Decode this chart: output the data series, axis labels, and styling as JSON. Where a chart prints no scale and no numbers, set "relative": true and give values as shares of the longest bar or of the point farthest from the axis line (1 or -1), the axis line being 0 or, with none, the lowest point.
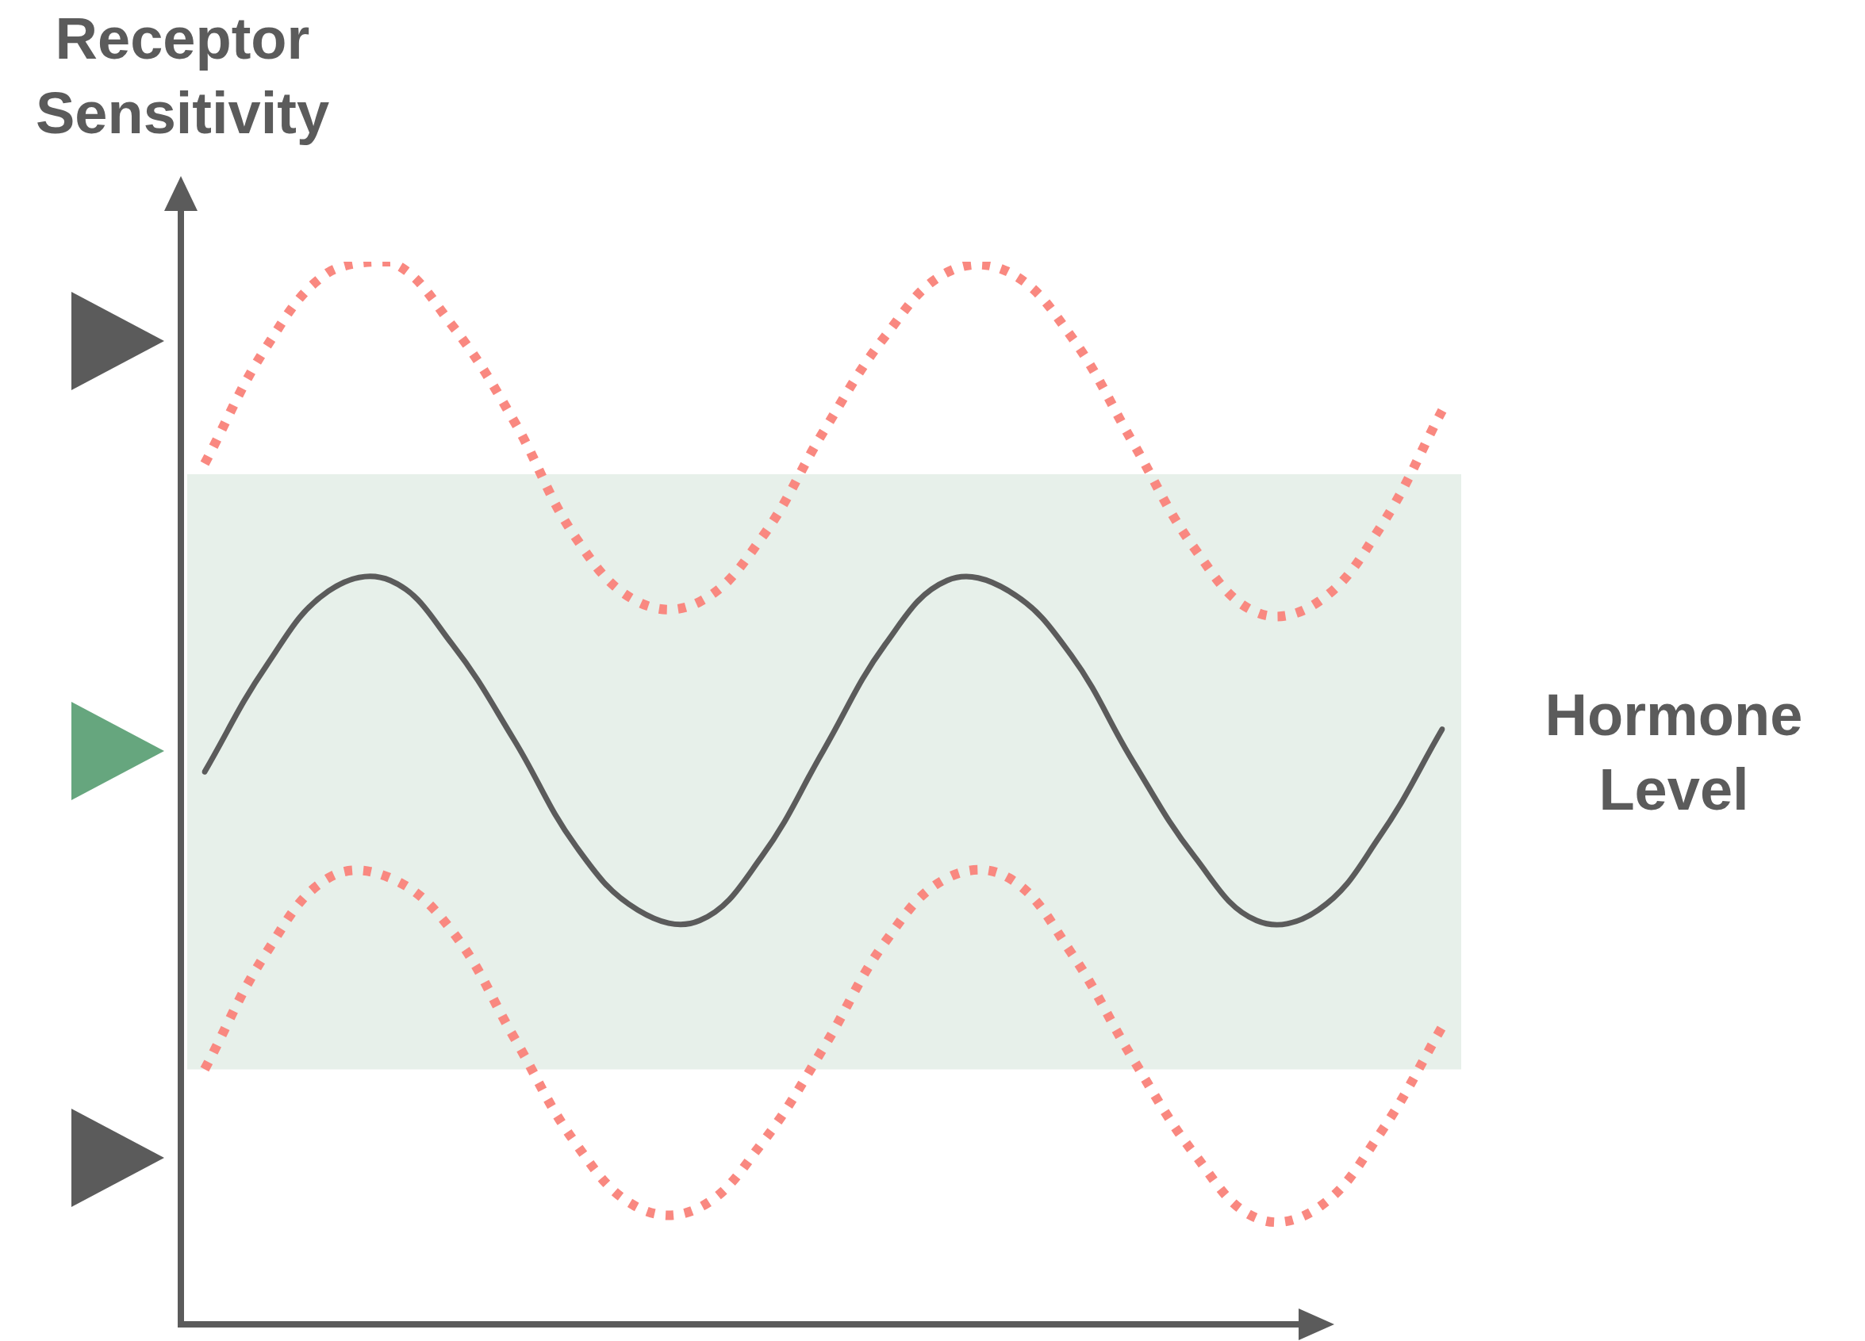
{
  "chart_data": {
    "type": "line",
    "relative": true,
    "ylabel": "Receptor Sensitivity",
    "legend": false,
    "marker": "none",
    "categories": [
      null,
      null,
      null,
      null,
      null,
      null,
      null,
      null,
      null,
      null,
      null,
      null,
      null,
      null,
      null,
      null,
      null,
      null,
      null,
      null,
      null
    ],
    "bands": [
      {
        "axis": "y",
        "from": 0.24,
        "to": 0.8,
        "color": "#e7f0ea"
      }
    ],
    "series": [
      {
        "name": "Hormone Level",
        "color": "#5b5b5b",
        "line_style": "solid",
        "values": [
          0.52,
          0.62,
          0.69,
          0.7,
          0.64,
          0.55,
          0.45,
          0.39,
          0.38,
          0.44,
          0.54,
          0.64,
          0.7,
          0.69,
          0.63,
          0.53,
          0.44,
          0.38,
          0.39,
          0.46,
          0.56
        ]
      },
      {
        "color": "#f98880",
        "line_style": "dotted",
        "values": [
          0.81,
          0.92,
          0.99,
          1.0,
          0.94,
          0.85,
          0.74,
          0.68,
          0.68,
          0.74,
          0.84,
          0.93,
          0.99,
          0.99,
          0.93,
          0.83,
          0.73,
          0.67,
          0.68,
          0.75,
          0.86
        ]
      },
      {
        "color": "#f98880",
        "line_style": "dotted",
        "values": [
          0.24,
          0.35,
          0.42,
          0.42,
          0.37,
          0.27,
          0.17,
          0.11,
          0.11,
          0.17,
          0.26,
          0.36,
          0.42,
          0.42,
          0.35,
          0.25,
          0.16,
          0.1,
          0.11,
          0.18,
          0.28
        ]
      }
    ]
  }
}
